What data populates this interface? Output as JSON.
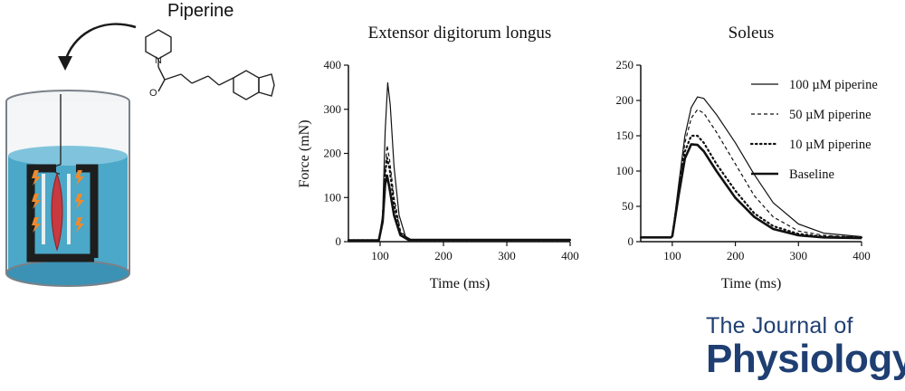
{
  "illustration": {
    "compound_label": "Piperine"
  },
  "chart_data": [
    {
      "type": "line",
      "title": "Extensor digitorum longus",
      "xlabel": "Time (ms)",
      "ylabel": "Force  (mN)",
      "xlim": [
        50,
        400
      ],
      "ylim": [
        0,
        400
      ],
      "xticks": [
        100,
        200,
        300,
        400
      ],
      "yticks": [
        0,
        100,
        200,
        300,
        400
      ],
      "series": [
        {
          "style": "thin-solid",
          "values": [
            [
              50,
              3
            ],
            [
              98,
              3
            ],
            [
              104,
              60
            ],
            [
              108,
              250
            ],
            [
              112,
              360
            ],
            [
              116,
              310
            ],
            [
              122,
              170
            ],
            [
              130,
              60
            ],
            [
              140,
              12
            ],
            [
              150,
              4
            ],
            [
              400,
              4
            ]
          ]
        },
        {
          "style": "dashed",
          "values": [
            [
              50,
              3
            ],
            [
              98,
              3
            ],
            [
              104,
              50
            ],
            [
              108,
              160
            ],
            [
              111,
              218
            ],
            [
              115,
              185
            ],
            [
              122,
              100
            ],
            [
              132,
              25
            ],
            [
              145,
              4
            ],
            [
              400,
              4
            ]
          ]
        },
        {
          "style": "dotted",
          "values": [
            [
              50,
              3
            ],
            [
              98,
              3
            ],
            [
              104,
              50
            ],
            [
              108,
              155
            ],
            [
              111,
              190
            ],
            [
              115,
              165
            ],
            [
              122,
              85
            ],
            [
              132,
              20
            ],
            [
              145,
              4
            ],
            [
              400,
              4
            ]
          ]
        },
        {
          "style": "thick-solid",
          "values": [
            [
              50,
              3
            ],
            [
              98,
              3
            ],
            [
              104,
              45
            ],
            [
              108,
              130
            ],
            [
              111,
              150
            ],
            [
              115,
              120
            ],
            [
              122,
              60
            ],
            [
              132,
              15
            ],
            [
              145,
              4
            ],
            [
              400,
              4
            ]
          ]
        }
      ]
    },
    {
      "type": "line",
      "title": "Soleus",
      "xlabel": "Time (ms)",
      "ylabel": "",
      "xlim": [
        50,
        400
      ],
      "ylim": [
        0,
        250
      ],
      "xticks": [
        100,
        200,
        300,
        400
      ],
      "yticks": [
        0,
        50,
        100,
        150,
        200,
        250
      ],
      "legend": [
        {
          "name": "100 µM piperine",
          "style": "thin-solid"
        },
        {
          "name": "50 µM piperine",
          "style": "dashed"
        },
        {
          "name": "10 µM piperine",
          "style": "dotted"
        },
        {
          "name": "Baseline",
          "style": "thick-solid"
        }
      ],
      "legend_position": "top-right",
      "series": [
        {
          "name": "100 µM piperine",
          "style": "thin-solid",
          "values": [
            [
              50,
              6
            ],
            [
              98,
              6
            ],
            [
              100,
              8
            ],
            [
              110,
              80
            ],
            [
              120,
              150
            ],
            [
              130,
              190
            ],
            [
              140,
              205
            ],
            [
              150,
              203
            ],
            [
              170,
              180
            ],
            [
              200,
              140
            ],
            [
              230,
              95
            ],
            [
              260,
              55
            ],
            [
              300,
              25
            ],
            [
              340,
              12
            ],
            [
              400,
              7
            ]
          ]
        },
        {
          "name": "50 µM piperine",
          "style": "dashed",
          "values": [
            [
              50,
              6
            ],
            [
              98,
              6
            ],
            [
              100,
              8
            ],
            [
              110,
              75
            ],
            [
              120,
              140
            ],
            [
              130,
              175
            ],
            [
              140,
              187
            ],
            [
              150,
              182
            ],
            [
              170,
              155
            ],
            [
              200,
              110
            ],
            [
              230,
              65
            ],
            [
              260,
              35
            ],
            [
              300,
              15
            ],
            [
              340,
              9
            ],
            [
              400,
              6
            ]
          ]
        },
        {
          "name": "10 µM piperine",
          "style": "dotted",
          "values": [
            [
              50,
              6
            ],
            [
              98,
              6
            ],
            [
              100,
              8
            ],
            [
              110,
              70
            ],
            [
              120,
              128
            ],
            [
              130,
              150
            ],
            [
              140,
              150
            ],
            [
              150,
              140
            ],
            [
              170,
              110
            ],
            [
              200,
              72
            ],
            [
              230,
              40
            ],
            [
              260,
              22
            ],
            [
              300,
              11
            ],
            [
              340,
              7
            ],
            [
              400,
              6
            ]
          ]
        },
        {
          "name": "Baseline",
          "style": "thick-solid",
          "values": [
            [
              50,
              6
            ],
            [
              98,
              6
            ],
            [
              100,
              8
            ],
            [
              110,
              65
            ],
            [
              120,
              118
            ],
            [
              130,
              138
            ],
            [
              140,
              137
            ],
            [
              150,
              128
            ],
            [
              170,
              100
            ],
            [
              200,
              62
            ],
            [
              230,
              35
            ],
            [
              260,
              18
            ],
            [
              300,
              9
            ],
            [
              340,
              6
            ],
            [
              400,
              5
            ]
          ]
        }
      ]
    }
  ],
  "branding": {
    "journal_line1": "The Journal of",
    "journal_line2": "Physiology"
  }
}
